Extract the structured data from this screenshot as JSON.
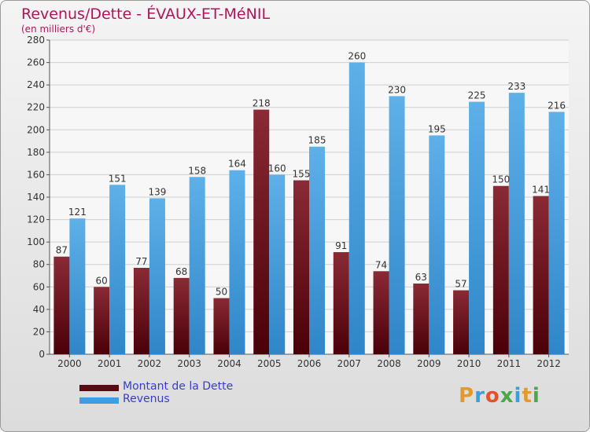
{
  "title": "Revenus/Dette - ÉVAUX-ET-MéNIL",
  "subtitle": "(en milliers d'€)",
  "colors": {
    "dette_top": "#8a2a35",
    "dette_bottom": "#4a0008",
    "revenus_top": "#5eb0e8",
    "revenus_bottom": "#2f86c8",
    "title": "#b0145a",
    "legend_text": "#3a3ad0"
  },
  "chart_data": {
    "type": "bar",
    "categories": [
      "2000",
      "2001",
      "2002",
      "2003",
      "2004",
      "2005",
      "2006",
      "2007",
      "2008",
      "2009",
      "2010",
      "2011",
      "2012"
    ],
    "series": [
      {
        "name": "Montant de la Dette",
        "values": [
          87,
          60,
          77,
          68,
          50,
          218,
          155,
          91,
          74,
          63,
          57,
          150,
          141
        ]
      },
      {
        "name": "Revenus",
        "values": [
          121,
          151,
          139,
          158,
          164,
          160,
          185,
          260,
          230,
          195,
          225,
          233,
          216
        ]
      }
    ],
    "ylim": [
      0,
      280
    ],
    "yticks": [
      0,
      20,
      40,
      60,
      80,
      100,
      120,
      140,
      160,
      180,
      200,
      220,
      240,
      260,
      280
    ],
    "grid": true,
    "legend_position": "bottom-left"
  },
  "legend": [
    {
      "label": "Montant de la Dette",
      "color": "#5a0a12"
    },
    {
      "label": "Revenus",
      "color": "#3f9ee0"
    }
  ],
  "logo": {
    "letters": [
      "P",
      "r",
      "o",
      "x",
      "i",
      "t",
      "i"
    ],
    "colors": [
      "#e39a2c",
      "#3aa0dc",
      "#e0532c",
      "#4aa84a",
      "#3aa0dc",
      "#e39a2c",
      "#4aa84a"
    ]
  }
}
